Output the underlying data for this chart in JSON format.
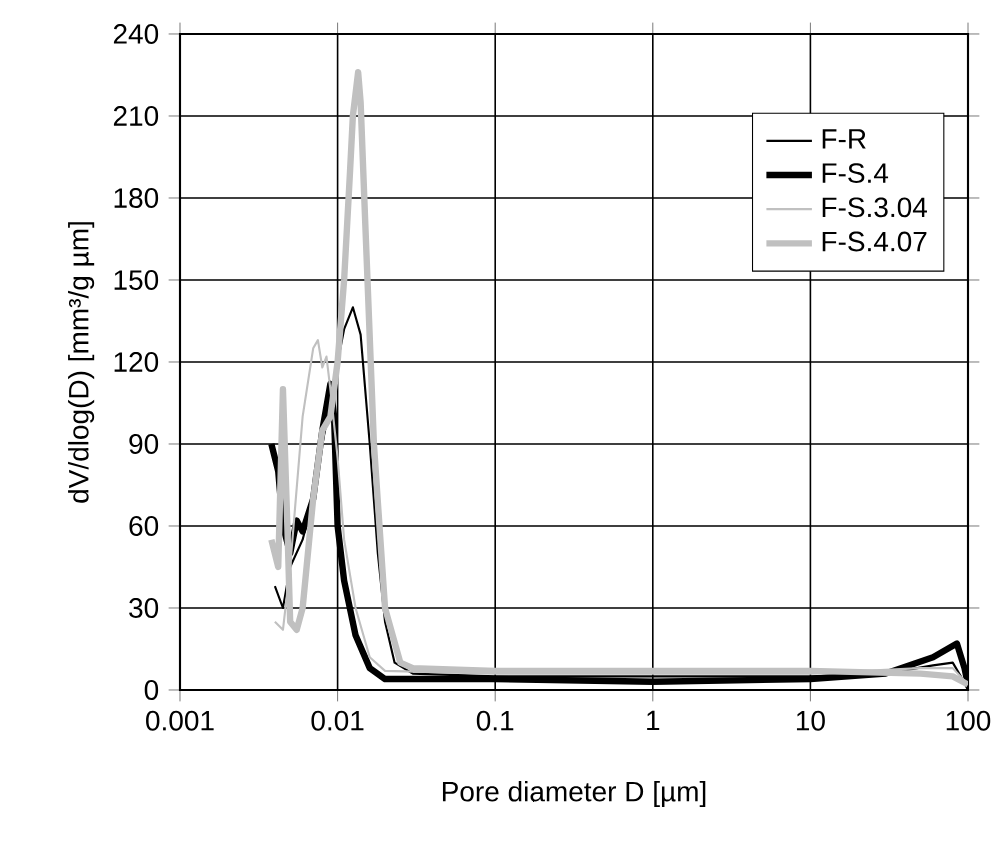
{
  "chart_data": {
    "type": "line",
    "xlabel": "Pore diameter D [µm]",
    "ylabel": "dV/dlog(D) [mm³/g µm]",
    "log": "x",
    "grid": true,
    "legend": "top right",
    "marker": "none",
    "line_style": "solid",
    "xlim": [
      0.001,
      100
    ],
    "xticks": [
      0.001,
      0.01,
      0.1,
      1,
      10,
      100
    ],
    "ylim": [
      0,
      240
    ],
    "yticks": [
      0,
      30,
      60,
      90,
      120,
      150,
      180,
      210,
      240
    ],
    "series": [
      {
        "name": "F-R",
        "color": "#000000",
        "x": [
          0.004,
          0.0045,
          0.005,
          0.006,
          0.007,
          0.008,
          0.009,
          0.01,
          0.011,
          0.0125,
          0.014,
          0.016,
          0.018,
          0.02,
          0.023,
          0.03,
          0.1,
          1,
          10,
          30,
          60,
          80,
          90,
          100
        ],
        "values": [
          38,
          30,
          45,
          55,
          70,
          90,
          105,
          120,
          132,
          140,
          130,
          90,
          50,
          25,
          10,
          6,
          5,
          5,
          5,
          6,
          9,
          10,
          5,
          0
        ]
      },
      {
        "name": "F-S.4",
        "color": "#000000",
        "x": [
          0.0038,
          0.0042,
          0.0045,
          0.005,
          0.0055,
          0.006,
          0.007,
          0.008,
          0.009,
          0.0095,
          0.01,
          0.011,
          0.013,
          0.016,
          0.02,
          0.1,
          1,
          10,
          30,
          60,
          85,
          95,
          100
        ],
        "values": [
          90,
          80,
          60,
          50,
          62,
          58,
          70,
          95,
          112,
          100,
          60,
          40,
          20,
          8,
          4,
          4,
          3,
          4,
          6,
          12,
          17,
          8,
          2
        ]
      },
      {
        "name": "F-S.3.04",
        "color": "#c0c0c0",
        "x": [
          0.004,
          0.0045,
          0.005,
          0.006,
          0.007,
          0.0075,
          0.008,
          0.0085,
          0.009,
          0.01,
          0.011,
          0.013,
          0.016,
          0.02,
          0.1,
          1,
          10,
          50,
          80,
          100
        ],
        "values": [
          25,
          22,
          45,
          100,
          125,
          128,
          118,
          122,
          110,
          85,
          55,
          30,
          12,
          7,
          6,
          6,
          6,
          8,
          8,
          2
        ]
      },
      {
        "name": "F-S.4.07",
        "color": "#c0c0c0",
        "x": [
          0.0038,
          0.0042,
          0.0045,
          0.0048,
          0.005,
          0.0055,
          0.006,
          0.007,
          0.008,
          0.009,
          0.01,
          0.011,
          0.012,
          0.0125,
          0.0135,
          0.014,
          0.015,
          0.017,
          0.02,
          0.025,
          0.03,
          0.1,
          1,
          10,
          50,
          80,
          100
        ],
        "values": [
          55,
          45,
          110,
          60,
          25,
          22,
          30,
          70,
          95,
          100,
          120,
          150,
          190,
          210,
          226,
          215,
          170,
          90,
          30,
          10,
          8,
          7,
          7,
          7,
          6,
          5,
          2
        ]
      }
    ]
  }
}
